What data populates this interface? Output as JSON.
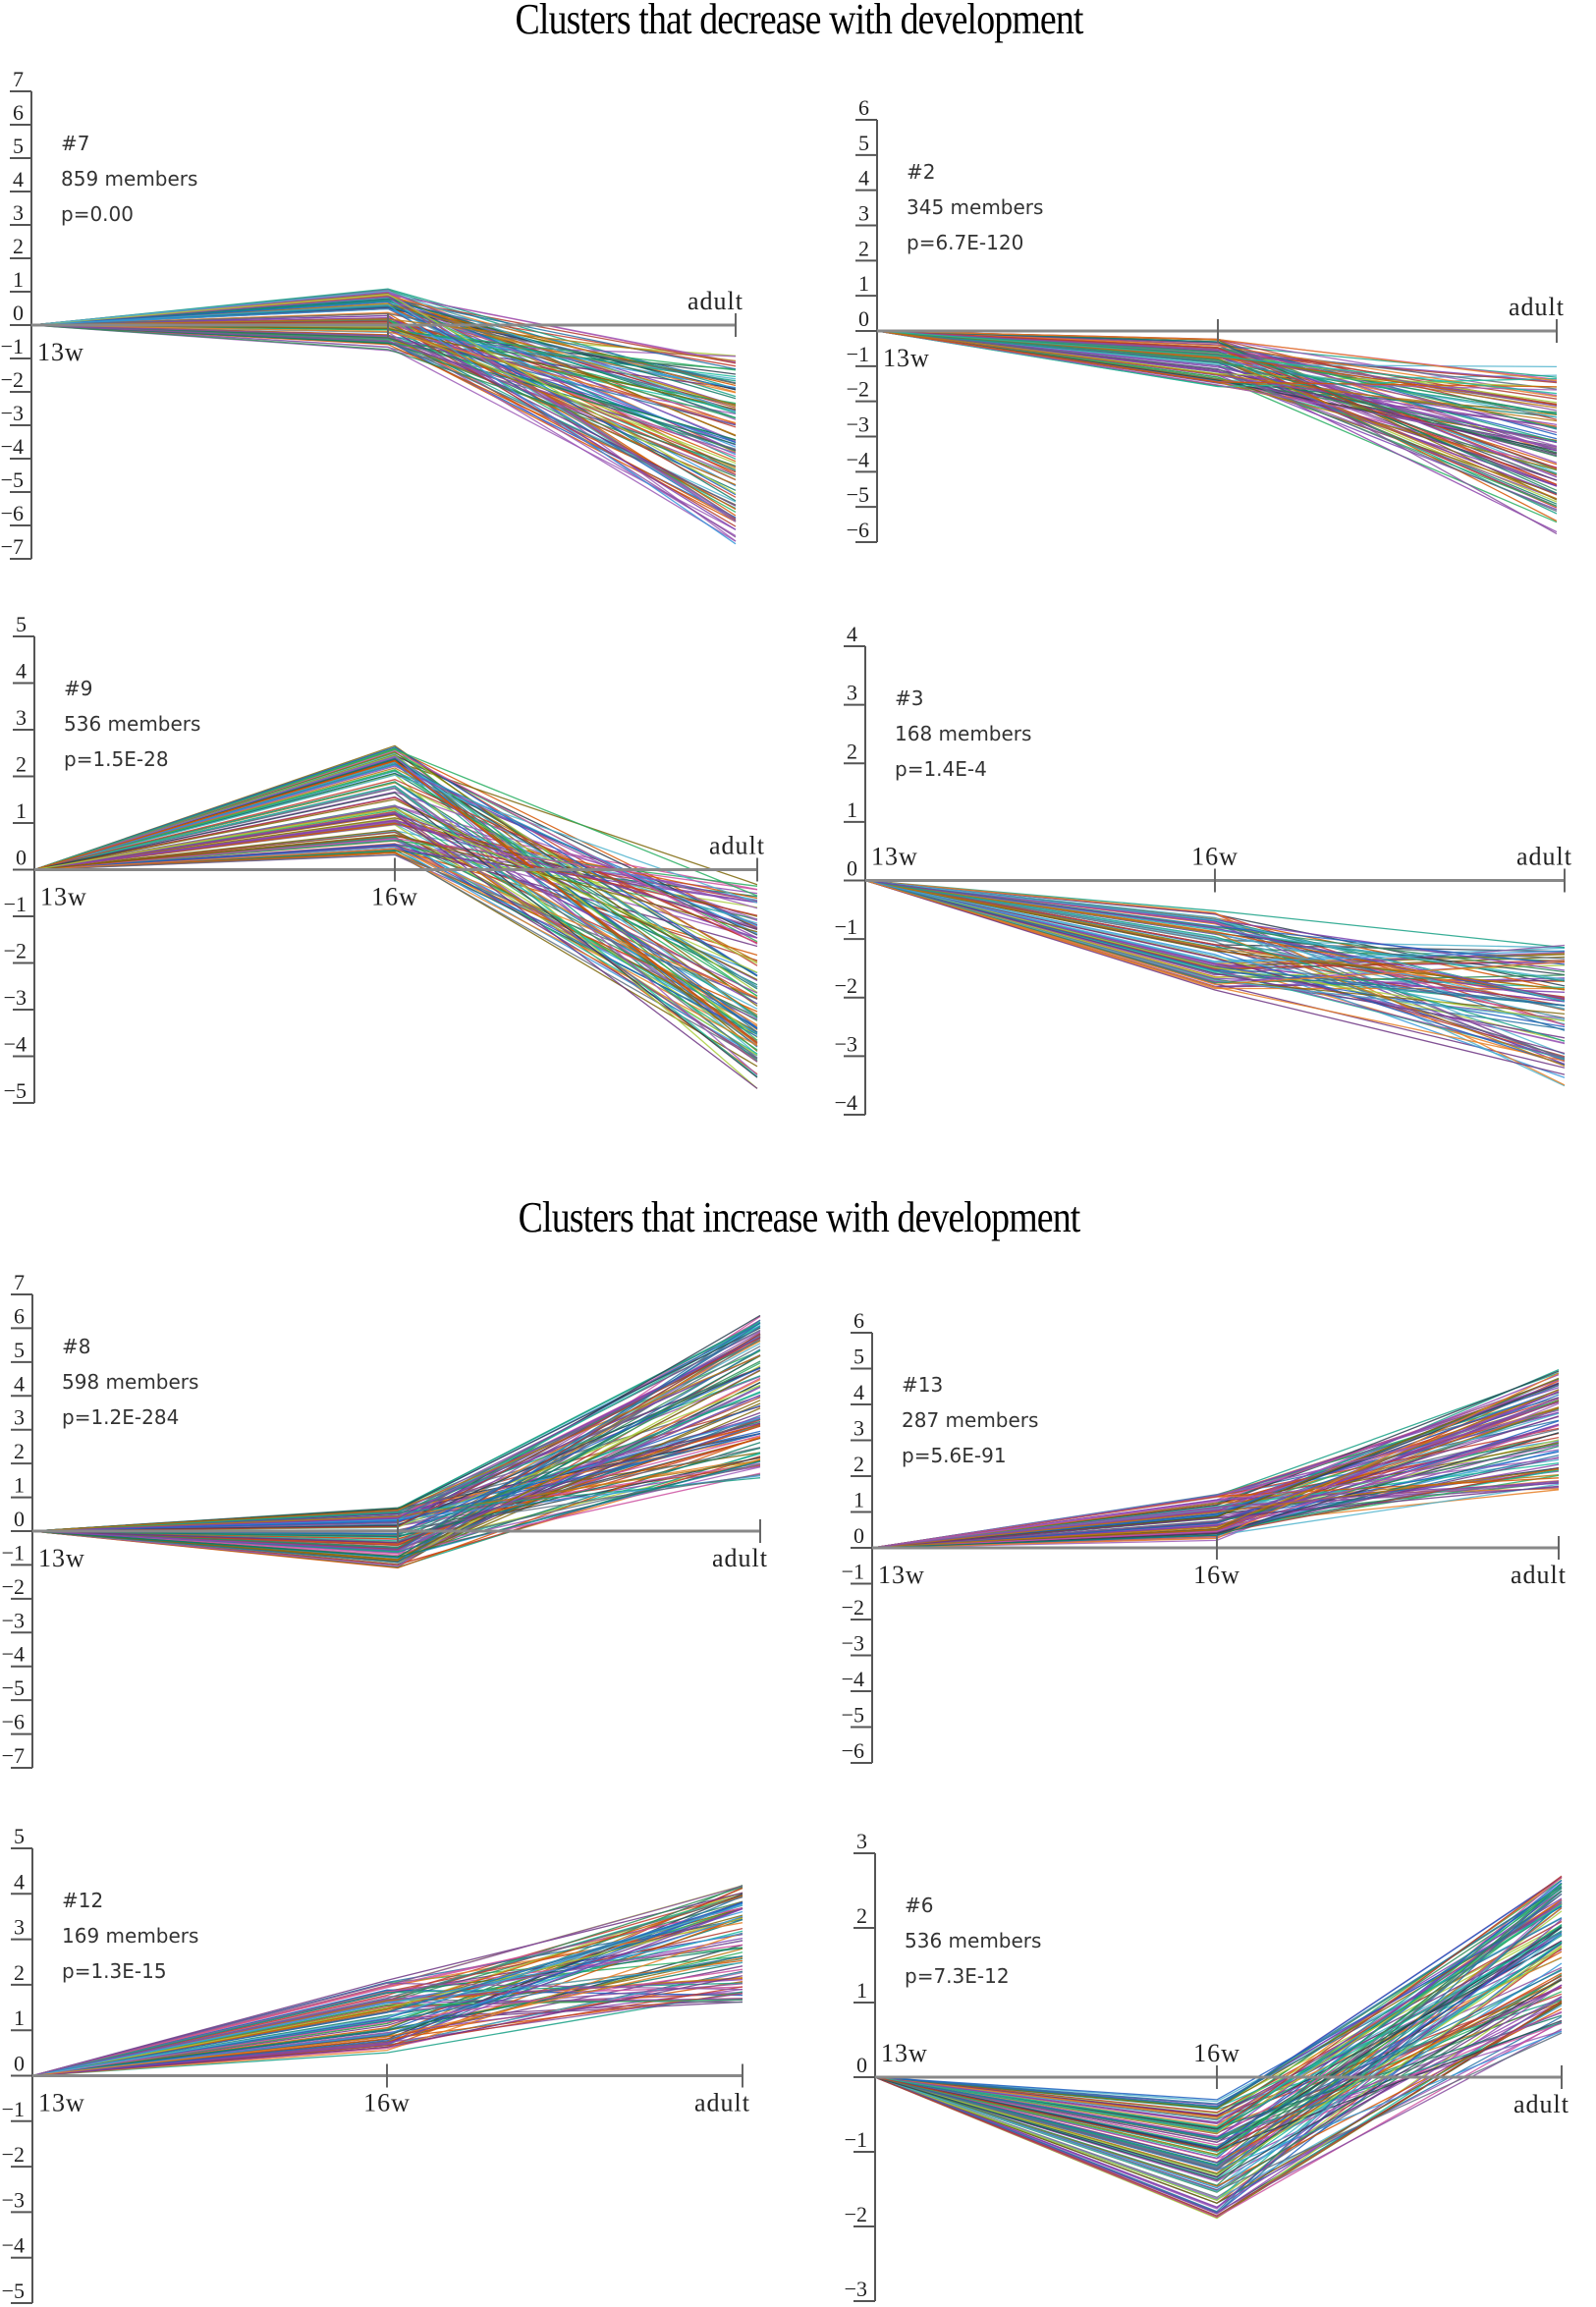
{
  "titles": {
    "decrease": "Clusters that decrease with development",
    "increase": "Clusters that increase with development"
  },
  "chart_data": [
    {
      "type": "line",
      "group": "decrease",
      "cluster_id": "#7",
      "members_label": "859 members",
      "p_label": "p=0.00",
      "members": 859,
      "p_value": "0.00",
      "x": [
        "13w",
        "16w",
        "adult"
      ],
      "x_labels_shown": [
        "13w",
        "",
        "adult"
      ],
      "ylim": [
        -7,
        7
      ],
      "yticks": [
        7,
        6,
        5,
        4,
        3,
        2,
        1,
        0,
        -1,
        -2,
        -3,
        -4,
        -5,
        -6,
        -7
      ],
      "profile_range": {
        "13w": [
          0,
          0
        ],
        "16w": [
          -0.8,
          1.1
        ],
        "adult": [
          -6.8,
          -0.9
        ]
      },
      "series_count_drawn": 120
    },
    {
      "type": "line",
      "group": "decrease",
      "cluster_id": "#2",
      "members_label": "345 members",
      "p_label": "p=6.7E-120",
      "members": 345,
      "p_value": "6.7E-120",
      "x": [
        "13w",
        "16w",
        "adult"
      ],
      "x_labels_shown": [
        "13w",
        "",
        "adult"
      ],
      "ylim": [
        -6,
        6
      ],
      "yticks": [
        6,
        5,
        4,
        3,
        2,
        1,
        0,
        -1,
        -2,
        -3,
        -4,
        -5,
        -6
      ],
      "profile_range": {
        "13w": [
          0,
          0
        ],
        "16w": [
          -1.6,
          -0.2
        ],
        "adult": [
          -5.8,
          -1.0
        ]
      },
      "series_count_drawn": 100
    },
    {
      "type": "line",
      "group": "decrease",
      "cluster_id": "#9",
      "members_label": "536 members",
      "p_label": "p=1.5E-28",
      "members": 536,
      "p_value": "1.5E-28",
      "x": [
        "13w",
        "16w",
        "adult"
      ],
      "x_labels_shown": [
        "13w",
        "16w",
        "adult"
      ],
      "ylim": [
        -5,
        5
      ],
      "yticks": [
        5,
        4,
        3,
        2,
        1,
        0,
        -1,
        -2,
        -3,
        -4,
        -5
      ],
      "profile_range": {
        "13w": [
          0,
          0
        ],
        "16w": [
          0.3,
          2.7
        ],
        "adult": [
          -4.8,
          -0.3
        ]
      },
      "series_count_drawn": 120
    },
    {
      "type": "line",
      "group": "decrease",
      "cluster_id": "#3",
      "members_label": "168 members",
      "p_label": "p=1.4E-4",
      "members": 168,
      "p_value": "1.4E-4",
      "x": [
        "13w",
        "16w",
        "adult"
      ],
      "x_labels_shown": [
        "13w",
        "16w",
        "adult"
      ],
      "ylim": [
        -4,
        4
      ],
      "yticks": [
        4,
        3,
        2,
        1,
        0,
        -1,
        -2,
        -3,
        -4
      ],
      "profile_range": {
        "13w": [
          0,
          0
        ],
        "16w": [
          -1.9,
          -0.5
        ],
        "adult": [
          -3.6,
          -1.1
        ]
      },
      "series_count_drawn": 90
    },
    {
      "type": "line",
      "group": "increase",
      "cluster_id": "#8",
      "members_label": "598 members",
      "p_label": "p=1.2E-284",
      "members": 598,
      "p_value": "1.2E-284",
      "x": [
        "13w",
        "16w",
        "adult"
      ],
      "x_labels_shown": [
        "13w",
        "",
        "adult"
      ],
      "ylim": [
        -7,
        7
      ],
      "yticks": [
        7,
        6,
        5,
        4,
        3,
        2,
        1,
        0,
        -1,
        -2,
        -3,
        -4,
        -5,
        -6,
        -7
      ],
      "profile_range": {
        "13w": [
          0,
          0
        ],
        "16w": [
          -1.1,
          0.7
        ],
        "adult": [
          0.7,
          6.4
        ]
      },
      "series_count_drawn": 120
    },
    {
      "type": "line",
      "group": "increase",
      "cluster_id": "#13",
      "members_label": "287 members",
      "p_label": "p=5.6E-91",
      "members": 287,
      "p_value": "5.6E-91",
      "x": [
        "13w",
        "16w",
        "adult"
      ],
      "x_labels_shown": [
        "13w",
        "16w",
        "adult"
      ],
      "ylim": [
        -6,
        6
      ],
      "yticks": [
        6,
        5,
        4,
        3,
        2,
        1,
        0,
        -1,
        -2,
        -3,
        -4,
        -5,
        -6
      ],
      "profile_range": {
        "13w": [
          0,
          0
        ],
        "16w": [
          0.2,
          1.5
        ],
        "adult": [
          1.0,
          5.0
        ]
      },
      "series_count_drawn": 100
    },
    {
      "type": "line",
      "group": "increase",
      "cluster_id": "#12",
      "members_label": "169 members",
      "p_label": "p=1.3E-15",
      "members": 169,
      "p_value": "1.3E-15",
      "x": [
        "13w",
        "16w",
        "adult"
      ],
      "x_labels_shown": [
        "13w",
        "16w",
        "adult"
      ],
      "ylim": [
        -5,
        5
      ],
      "yticks": [
        5,
        4,
        3,
        2,
        1,
        0,
        -1,
        -2,
        -3,
        -4,
        -5
      ],
      "profile_range": {
        "13w": [
          0,
          0
        ],
        "16w": [
          0.5,
          2.1
        ],
        "adult": [
          1.0,
          4.2
        ]
      },
      "series_count_drawn": 90
    },
    {
      "type": "line",
      "group": "increase",
      "cluster_id": "#6",
      "members_label": "536 members",
      "p_label": "p=7.3E-12",
      "members": 536,
      "p_value": "7.3E-12",
      "x": [
        "13w",
        "16w",
        "adult"
      ],
      "x_labels_shown": [
        "13w",
        "16w",
        "adult"
      ],
      "ylim": [
        -3,
        3
      ],
      "yticks": [
        3,
        2,
        1,
        0,
        -1,
        -2,
        -3
      ],
      "profile_range": {
        "13w": [
          0,
          0
        ],
        "16w": [
          -1.9,
          -0.3
        ],
        "adult": [
          0.2,
          2.7
        ]
      },
      "series_count_drawn": 120
    }
  ]
}
